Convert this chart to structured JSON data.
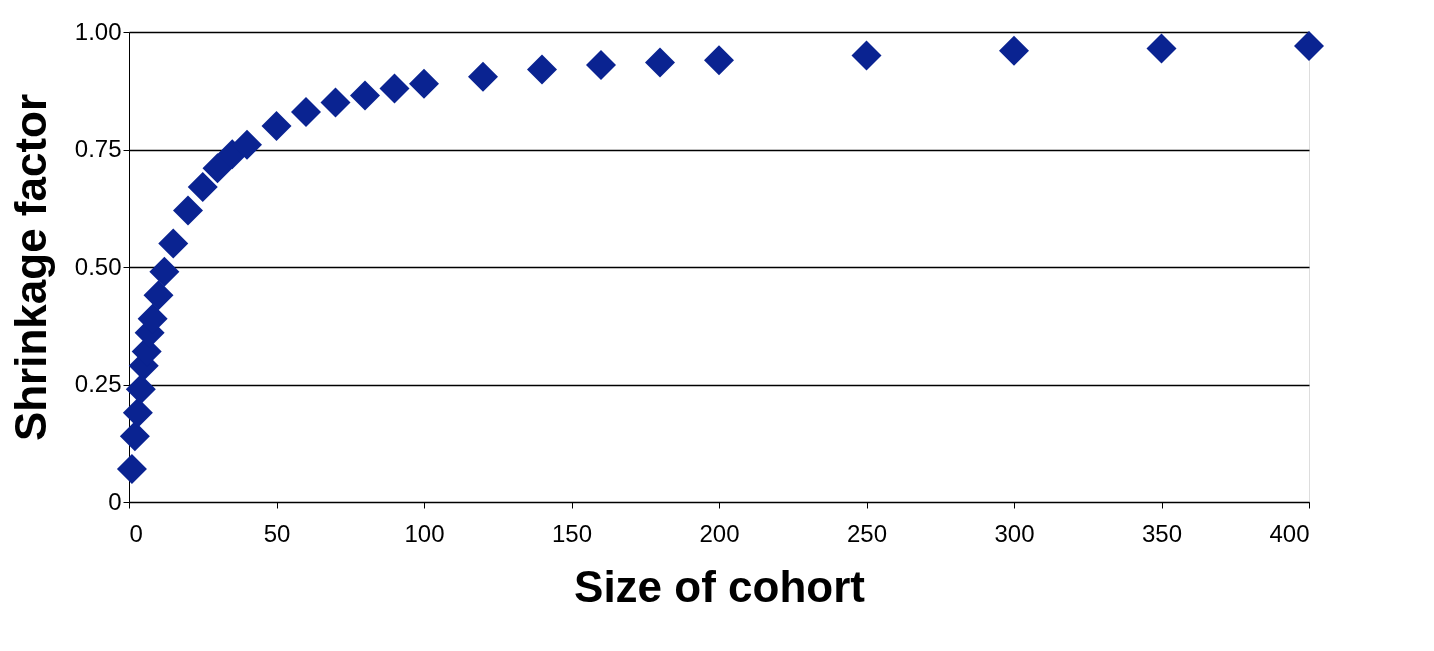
{
  "chart_data": {
    "type": "scatter",
    "xlabel": "Size of cohort",
    "ylabel": "Shrinkage factor",
    "x": [
      1,
      2,
      3,
      4,
      5,
      6,
      7,
      8,
      10,
      12,
      15,
      20,
      25,
      30,
      35,
      40,
      50,
      60,
      70,
      80,
      90,
      100,
      120,
      140,
      160,
      180,
      200,
      250,
      300,
      350,
      400
    ],
    "series": [
      {
        "color": "#0a2391",
        "values": [
          0.07,
          0.14,
          0.19,
          0.24,
          0.29,
          0.32,
          0.36,
          0.39,
          0.44,
          0.49,
          0.55,
          0.62,
          0.67,
          0.71,
          0.74,
          0.76,
          0.8,
          0.83,
          0.85,
          0.865,
          0.88,
          0.89,
          0.905,
          0.92,
          0.93,
          0.935,
          0.94,
          0.95,
          0.96,
          0.965,
          0.97
        ]
      }
    ],
    "xlim": [
      0,
      400
    ],
    "xticks": [
      0,
      50,
      100,
      150,
      200,
      250,
      300,
      350,
      400
    ],
    "ylim": [
      0,
      1
    ],
    "yticks": [
      {
        "value": 0,
        "label": "0"
      },
      {
        "value": 0.25,
        "label": "0.25"
      },
      {
        "value": 0.5,
        "label": "0.50"
      },
      {
        "value": 0.75,
        "label": "0.75"
      },
      {
        "value": 1,
        "label": "1.00"
      }
    ],
    "grid": "y",
    "marker": "diamond",
    "legend": false
  }
}
